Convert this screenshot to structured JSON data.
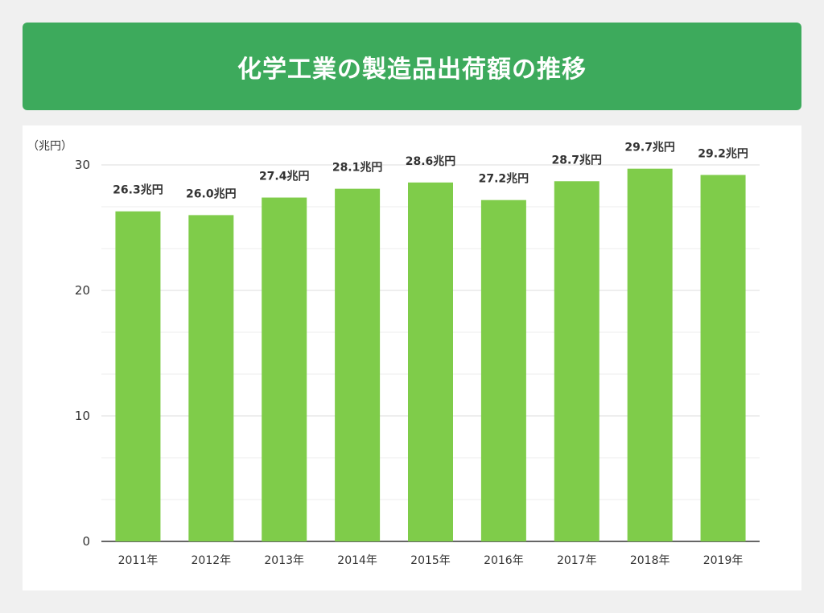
{
  "header": {
    "title": "化学工業の製造品出荷額の推移"
  },
  "colors": {
    "banner": "#3daa5c",
    "bar": "#7fcc4a",
    "grid": "#dddddd",
    "axis": "#333333"
  },
  "chart_data": {
    "type": "bar",
    "title": "",
    "unit_label": "（兆円）",
    "categories": [
      "2011年",
      "2012年",
      "2013年",
      "2014年",
      "2015年",
      "2016年",
      "2017年",
      "2018年",
      "2019年"
    ],
    "values": [
      26.3,
      26.0,
      27.4,
      28.1,
      28.6,
      27.2,
      28.7,
      29.7,
      29.2
    ],
    "data_labels": [
      "26.3兆円",
      "26.0兆円",
      "27.4兆円",
      "28.1兆円",
      "28.6兆円",
      "27.2兆円",
      "28.7兆円",
      "29.7兆円",
      "29.2兆円"
    ],
    "y_ticks": [
      "0",
      "10",
      "20",
      "30"
    ],
    "ylim": [
      0,
      30
    ],
    "grid": true,
    "legend": "none"
  }
}
